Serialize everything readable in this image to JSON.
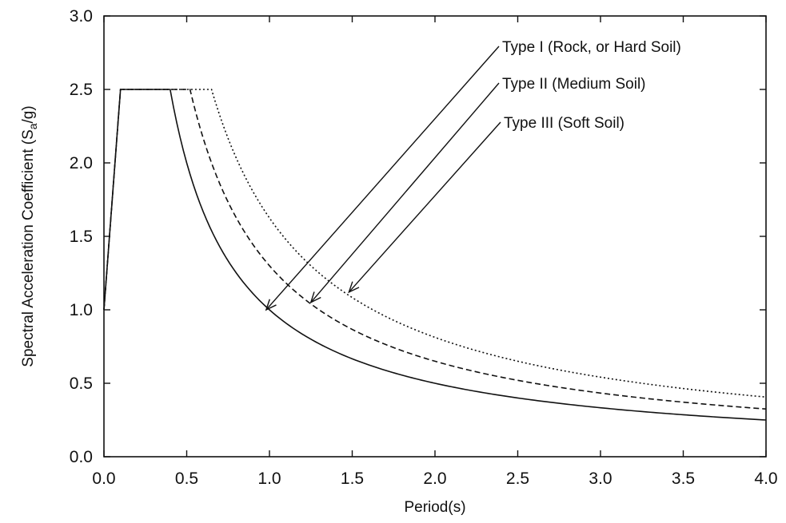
{
  "chart_data": {
    "type": "line",
    "xlabel": "Period(s)",
    "ylabel_main": "Spectral Acceleration Coefficient (S",
    "ylabel_sub": "a",
    "ylabel_end": "/g)",
    "xlim": [
      0.0,
      4.0
    ],
    "ylim": [
      0.0,
      3.0
    ],
    "xticks": [
      "0.0",
      "0.5",
      "1.0",
      "1.5",
      "2.0",
      "2.5",
      "3.0",
      "3.5",
      "4.0"
    ],
    "yticks": [
      "0.0",
      "0.5",
      "1.0",
      "1.5",
      "2.0",
      "2.5",
      "3.0"
    ],
    "grid": false,
    "series": [
      {
        "name": "Type I  (Rock, or Hard Soil)",
        "line_style": "solid",
        "x": [
          0.0,
          0.1,
          0.4,
          0.5,
          0.6,
          0.7,
          0.8,
          1.0,
          1.2,
          1.5,
          2.0,
          2.5,
          3.0,
          3.5,
          4.0
        ],
        "y": [
          1.0,
          2.5,
          2.5,
          2.0,
          1.667,
          1.429,
          1.25,
          1.0,
          0.833,
          0.667,
          0.5,
          0.4,
          0.333,
          0.286,
          0.25
        ],
        "arrow_to": [
          0.98,
          1.0
        ]
      },
      {
        "name": "Type II (Medium Soil)",
        "line_style": "dashed",
        "x": [
          0.0,
          0.1,
          0.52,
          0.6,
          0.7,
          0.8,
          1.0,
          1.2,
          1.5,
          2.0,
          2.5,
          3.0,
          3.5,
          4.0
        ],
        "y": [
          1.0,
          2.5,
          2.5,
          2.167,
          1.857,
          1.625,
          1.3,
          1.083,
          0.867,
          0.65,
          0.52,
          0.433,
          0.371,
          0.325
        ],
        "arrow_to": [
          1.25,
          1.05
        ]
      },
      {
        "name": "Type III (Soft Soil)",
        "line_style": "dotted",
        "x": [
          0.0,
          0.1,
          0.65,
          0.7,
          0.8,
          1.0,
          1.2,
          1.5,
          2.0,
          2.5,
          3.0,
          3.5,
          4.0
        ],
        "y": [
          1.0,
          2.5,
          2.5,
          2.321,
          2.031,
          1.625,
          1.354,
          1.083,
          0.813,
          0.65,
          0.542,
          0.464,
          0.406
        ],
        "arrow_to": [
          1.48,
          1.12
        ]
      }
    ]
  }
}
